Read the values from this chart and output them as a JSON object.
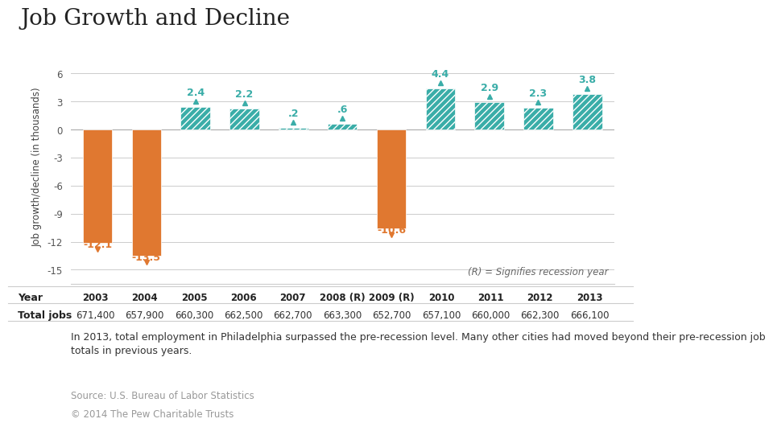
{
  "title": "Job Growth and Decline",
  "years": [
    "2003",
    "2004",
    "2005",
    "2006",
    "2007",
    "2008 (R)",
    "2009 (R)",
    "2010",
    "2011",
    "2012",
    "2013"
  ],
  "values": [
    -12.1,
    -13.5,
    2.4,
    2.2,
    0.2,
    0.6,
    -10.6,
    4.4,
    2.9,
    2.3,
    3.8
  ],
  "total_jobs": [
    "671,400",
    "657,900",
    "660,300",
    "662,500",
    "662,700",
    "663,300",
    "652,700",
    "657,100",
    "660,000",
    "662,300",
    "666,100"
  ],
  "bar_color_positive": "#3aada8",
  "bar_color_negative": "#e07830",
  "value_labels": [
    "-12.1",
    "-13.5",
    "2.4",
    "2.2",
    ".2",
    ".6",
    "-10.6",
    "4.4",
    "2.9",
    "2.3",
    "3.8"
  ],
  "ylabel": "Job growth/decline (in thousands)",
  "ylim": [
    -16.5,
    8.5
  ],
  "yticks": [
    -15,
    -12,
    -9,
    -6,
    -3,
    0,
    3,
    6
  ],
  "recession_note": "(R) = Signifies recession year",
  "annotation_text": "In 2013, total employment in Philadelphia surpassed the pre-recession level. Many other cities had moved beyond their pre-recession job\ntotals in previous years.",
  "source_text": "Source: U.S. Bureau of Labor Statistics",
  "copyright_text": "© 2014 The Pew Charitable Trusts",
  "background_color": "#ffffff",
  "title_fontsize": 20,
  "ylabel_fontsize": 8.5,
  "tick_fontsize": 8.5,
  "bar_label_fontsize": 9,
  "annotation_fontsize": 9,
  "source_fontsize": 8.5,
  "grid_color": "#cccccc",
  "hatch": "////"
}
